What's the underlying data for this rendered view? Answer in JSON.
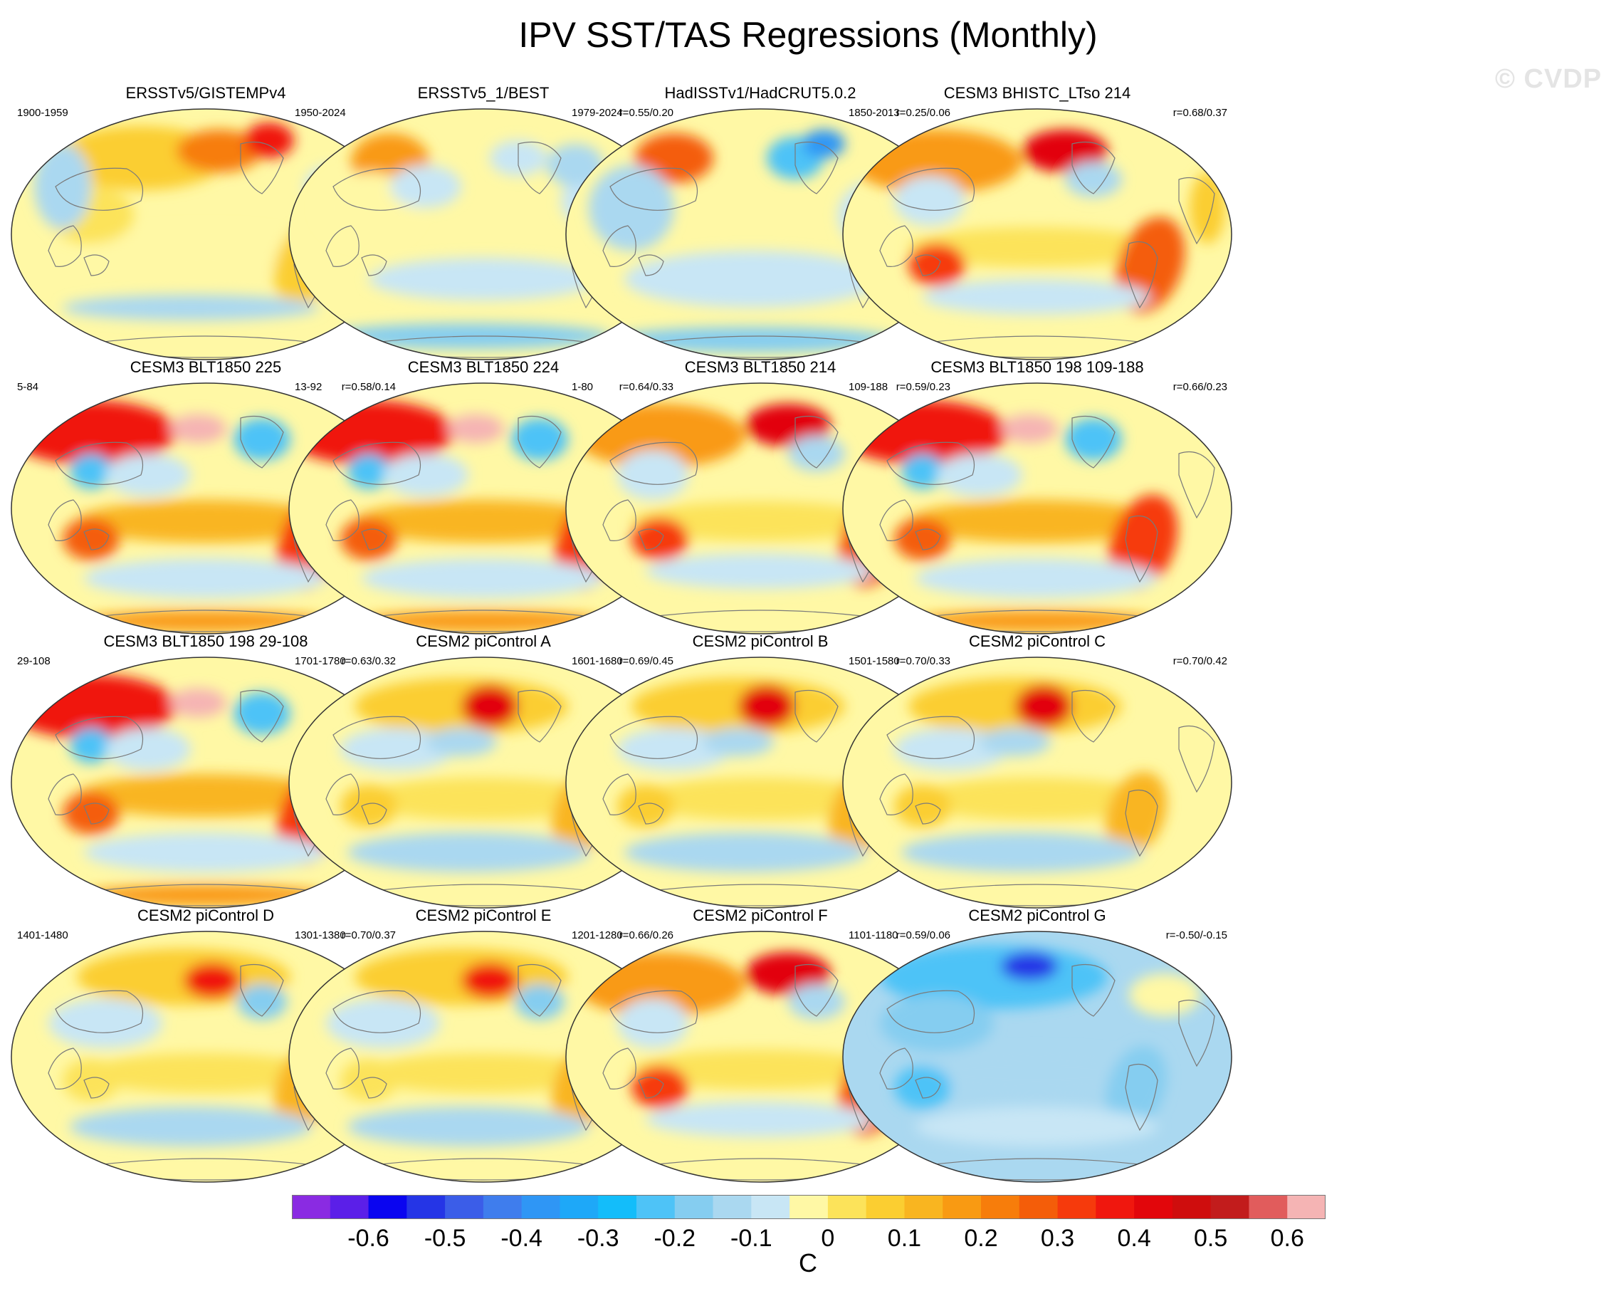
{
  "figure": {
    "title": "IPV SST/TAS Regressions (Monthly)",
    "watermark": "© CVDP"
  },
  "panels": [
    {
      "title": "ERSSTv5/GISTEMPv4",
      "period": "1900-1959",
      "corr": "",
      "pattern": "obs1"
    },
    {
      "title": "ERSSTv5_1/BEST",
      "period": "1950-2024",
      "corr": "r=0.55/0.20",
      "pattern": "obs2"
    },
    {
      "title": "HadISSTv1/HadCRUT5.0.2",
      "period": "1979-2024",
      "corr": "r=0.25/0.06",
      "pattern": "obs3"
    },
    {
      "title": "CESM3 BHISTC_LTso 214",
      "period": "1850-2013",
      "corr": "r=0.68/0.37",
      "pattern": "strong"
    },
    {
      "title": "CESM3 BLT1850 225",
      "period": "5-84",
      "corr": "r=0.58/0.14",
      "pattern": "vstrong"
    },
    {
      "title": "CESM3 BLT1850 224",
      "period": "13-92",
      "corr": "r=0.64/0.33",
      "pattern": "vstrong"
    },
    {
      "title": "CESM3 BLT1850 214",
      "period": "1-80",
      "corr": "r=0.59/0.23",
      "pattern": "strong"
    },
    {
      "title": "CESM3 BLT1850 198 109-188",
      "period": "109-188",
      "corr": "r=0.66/0.23",
      "pattern": "vstrong"
    },
    {
      "title": "CESM3 BLT1850 198 29-108",
      "period": "29-108",
      "corr": "r=0.63/0.32",
      "pattern": "vstrong"
    },
    {
      "title": "CESM2 piControl A",
      "period": "1701-1780",
      "corr": "r=0.69/0.45",
      "pattern": "medium"
    },
    {
      "title": "CESM2 piControl B",
      "period": "1601-1680",
      "corr": "r=0.70/0.33",
      "pattern": "medium"
    },
    {
      "title": "CESM2 piControl C",
      "period": "1501-1580",
      "corr": "r=0.70/0.42",
      "pattern": "medium"
    },
    {
      "title": "CESM2 piControl D",
      "period": "1401-1480",
      "corr": "r=0.70/0.37",
      "pattern": "weak"
    },
    {
      "title": "CESM2 piControl E",
      "period": "1301-1380",
      "corr": "r=0.66/0.26",
      "pattern": "weak"
    },
    {
      "title": "CESM2 piControl F",
      "period": "1201-1280",
      "corr": "r=0.59/0.06",
      "pattern": "strong"
    },
    {
      "title": "CESM2 piControl G",
      "period": "1101-1180",
      "corr": "r=-0.50/-0.15",
      "pattern": "neg"
    }
  ],
  "colorbar": {
    "unit": "C",
    "tick_labels": [
      "-0.6",
      "-0.5",
      "-0.4",
      "-0.3",
      "-0.2",
      "-0.1",
      "0",
      "0.1",
      "0.2",
      "0.3",
      "0.4",
      "0.5",
      "0.6"
    ],
    "colors": [
      "#8a2be2",
      "#5b1fe8",
      "#0a05f0",
      "#2535e6",
      "#3b5de8",
      "#3f7ded",
      "#2f96f5",
      "#1ea8f8",
      "#13bdfa",
      "#4ec3f7",
      "#85cdf0",
      "#aad8f0",
      "#c8e6f5",
      "#fff8a5",
      "#fce35a",
      "#fbce31",
      "#f9b520",
      "#f99a12",
      "#f77d0b",
      "#f45d09",
      "#f63a0c",
      "#f0170e",
      "#e2060b",
      "#cf0d0d",
      "#c21c1c",
      "#e15c5c",
      "#f5b4b4"
    ]
  }
}
